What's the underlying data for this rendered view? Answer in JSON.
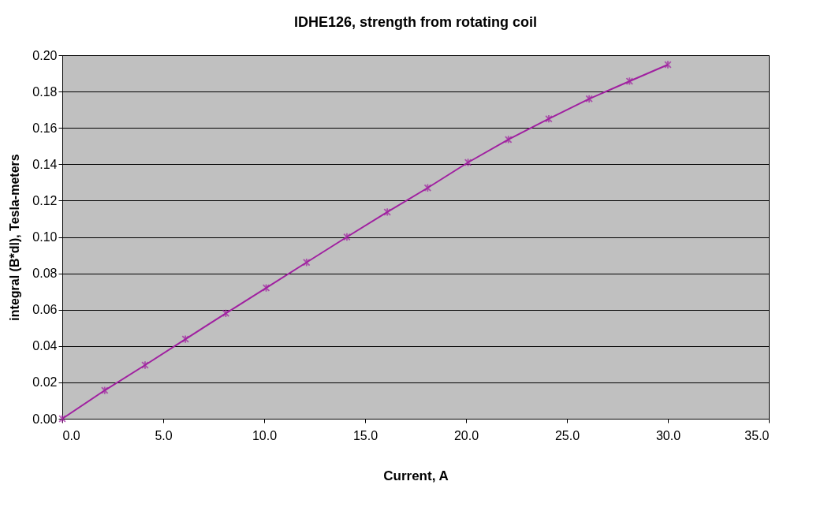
{
  "chart_data": {
    "type": "line",
    "title": "IDHE126, strength from rotating coil",
    "xlabel": "Current, A",
    "ylabel": "integral (B*dl), Tesla-meters",
    "x": [
      0,
      2.1,
      4.1,
      6.1,
      8.1,
      10.1,
      12.1,
      14.1,
      16.1,
      18.1,
      20.1,
      22.1,
      24.1,
      26.1,
      28.1,
      30
    ],
    "series": [
      {
        "color": "#a020a0",
        "values": [
          0,
          0.0156,
          0.0295,
          0.0438,
          0.058,
          0.072,
          0.086,
          0.1,
          0.1137,
          0.127,
          0.141,
          0.1536,
          0.165,
          0.176,
          0.1857,
          0.1948
        ]
      }
    ],
    "xlim": [
      0,
      35
    ],
    "xticks": [
      {
        "value": 0,
        "label": "0.0"
      },
      {
        "value": 5,
        "label": "5.0"
      },
      {
        "value": 10,
        "label": "10.0"
      },
      {
        "value": 15,
        "label": "15.0"
      },
      {
        "value": 20,
        "label": "20.0"
      },
      {
        "value": 25,
        "label": "25.0"
      },
      {
        "value": 30,
        "label": "30.0"
      },
      {
        "value": 35,
        "label": "35.0"
      }
    ],
    "ylim": [
      0,
      0.2
    ],
    "yticks": [
      {
        "value": 0,
        "label": "0.00"
      },
      {
        "value": 0.02,
        "label": "0.02"
      },
      {
        "value": 0.04,
        "label": "0.04"
      },
      {
        "value": 0.06,
        "label": "0.06"
      },
      {
        "value": 0.08,
        "label": "0.08"
      },
      {
        "value": 0.1,
        "label": "0.10"
      },
      {
        "value": 0.12,
        "label": "0.12"
      },
      {
        "value": 0.14,
        "label": "0.14"
      },
      {
        "value": 0.16,
        "label": "0.16"
      },
      {
        "value": 0.18,
        "label": "0.18"
      },
      {
        "value": 0.2,
        "label": "0.20"
      }
    ],
    "grid": "y",
    "marker": "cross",
    "line_style": "solid"
  }
}
